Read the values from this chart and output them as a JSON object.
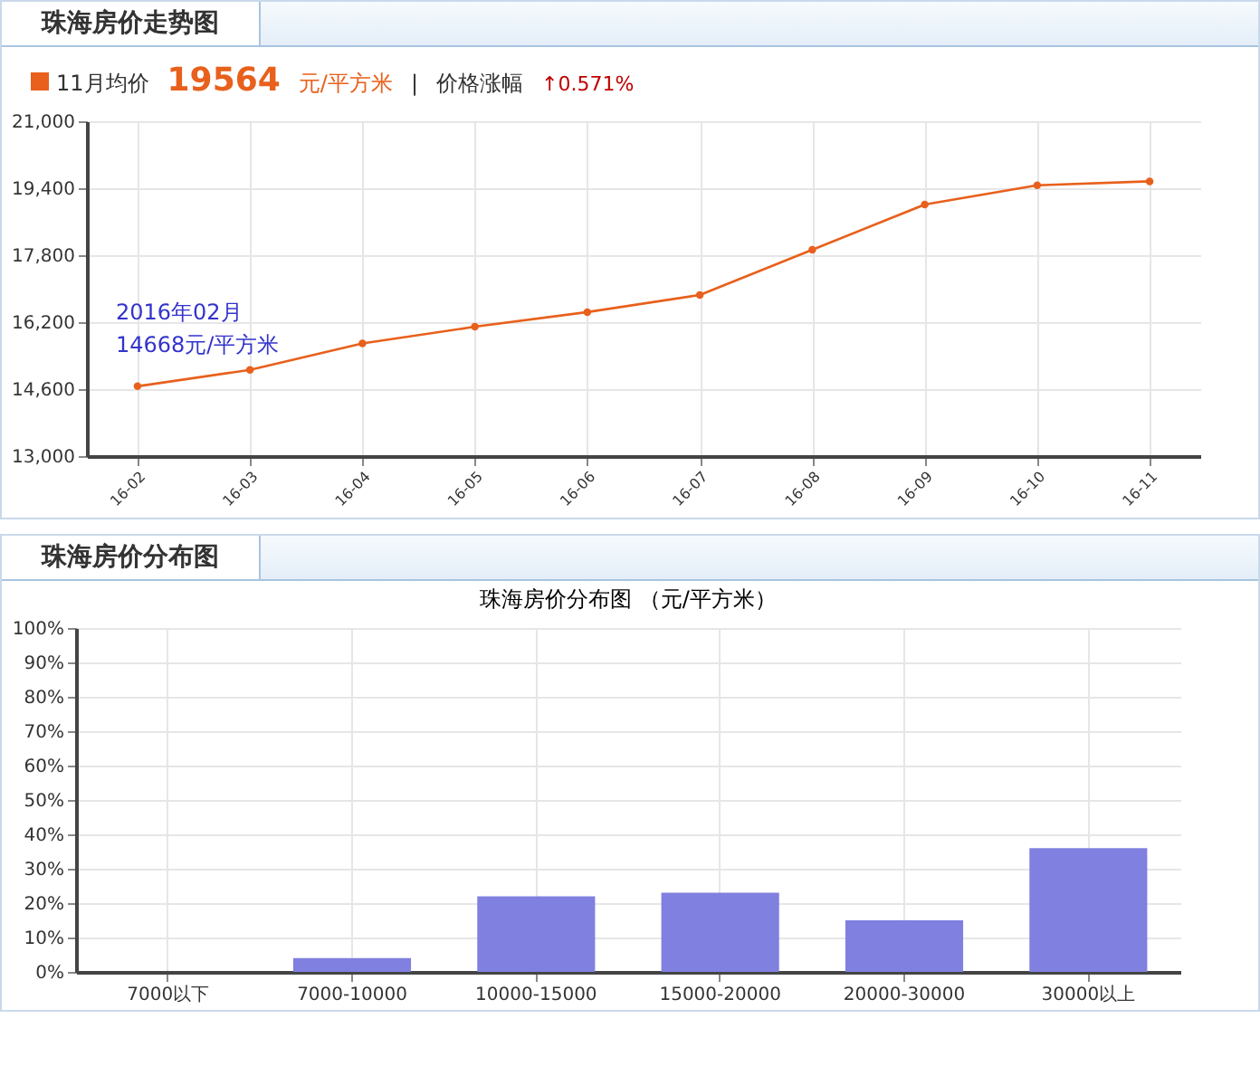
{
  "chart_data": [
    {
      "type": "line",
      "title": "珠海房价走势图",
      "categories": [
        "16-02",
        "16-03",
        "16-04",
        "16-05",
        "16-06",
        "16-07",
        "16-08",
        "16-09",
        "16-10",
        "16-11"
      ],
      "series": [
        {
          "color": "#e8601c",
          "values": [
            14668,
            15060,
            15690,
            16090,
            16440,
            16850,
            17930,
            19010,
            19470,
            19564
          ]
        }
      ],
      "ylim": [
        13000,
        21000
      ],
      "yticks": [
        {
          "value": 13000,
          "label": "13,000"
        },
        {
          "value": 14600,
          "label": "14,600"
        },
        {
          "value": 16200,
          "label": "16,200"
        },
        {
          "value": 17800,
          "label": "17,800"
        },
        {
          "value": 19400,
          "label": "19,400"
        },
        {
          "value": 21000,
          "label": "21,000"
        }
      ],
      "grid": true,
      "marker": "circle",
      "annotations": [
        "11月均价",
        "19564",
        "元/平方米",
        "|",
        "价格涨幅",
        "↑0.571%",
        {
          "text": "2016年02月\n14668元/平方米",
          "x": "16-02",
          "y": 14668
        }
      ]
    },
    {
      "type": "bar",
      "title": "珠海房价分布图",
      "subtitle": "珠海房价分布图 （元/平方米）",
      "categories": [
        "7000以下",
        "7000-10000",
        "10000-15000",
        "15000-20000",
        "20000-30000",
        "30000以上"
      ],
      "series": [
        {
          "color": "#8080e0",
          "values": [
            0,
            4,
            22,
            23,
            15,
            36
          ]
        }
      ],
      "ylim": [
        0,
        100
      ],
      "yticks": [
        {
          "value": 0,
          "label": "0%"
        },
        {
          "value": 10,
          "label": "10%"
        },
        {
          "value": 20,
          "label": "20%"
        },
        {
          "value": 30,
          "label": "30%"
        },
        {
          "value": 40,
          "label": "40%"
        },
        {
          "value": 50,
          "label": "50%"
        },
        {
          "value": 60,
          "label": "60%"
        },
        {
          "value": 70,
          "label": "70%"
        },
        {
          "value": 80,
          "label": "80%"
        },
        {
          "value": 90,
          "label": "90%"
        },
        {
          "value": 100,
          "label": "100%"
        }
      ],
      "grid": true
    }
  ]
}
